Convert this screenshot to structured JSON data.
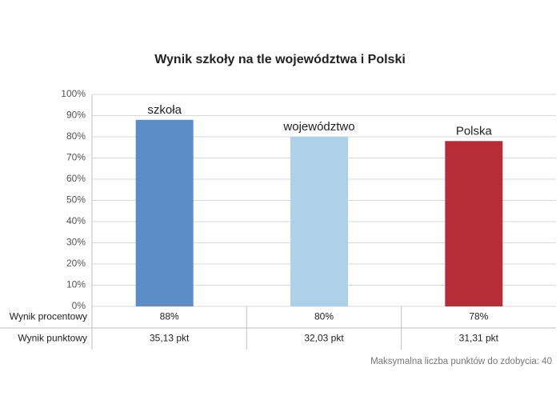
{
  "chart_data": {
    "type": "bar",
    "title": "Wynik szkoły na tle województwa i Polski",
    "categories": [
      "szkoła",
      "województwo",
      "Polska"
    ],
    "values": [
      88,
      80,
      78
    ],
    "value_labels": [
      "88%",
      "80%",
      "78%"
    ],
    "colors": [
      "#5b8dc8",
      "#acd1e8",
      "#b72c36"
    ],
    "ylim": [
      0,
      100
    ],
    "yticks": [
      {
        "value": 0,
        "label": "0%"
      },
      {
        "value": 10,
        "label": "10%"
      },
      {
        "value": 20,
        "label": "20%"
      },
      {
        "value": 30,
        "label": "30%"
      },
      {
        "value": 40,
        "label": "40%"
      },
      {
        "value": 50,
        "label": "50%"
      },
      {
        "value": 60,
        "label": "60%"
      },
      {
        "value": 70,
        "label": "70%"
      },
      {
        "value": 80,
        "label": "80%"
      },
      {
        "value": 90,
        "label": "90%"
      },
      {
        "value": 100,
        "label": "100%"
      }
    ],
    "grid": true,
    "row_labels": [
      "Wynik procentowy",
      "Wynik punktowy"
    ],
    "points": [
      "35,13 pkt",
      "32,03 pkt",
      "31,31 pkt"
    ],
    "note": "Maksymalna liczba punktów do zdobycia: 40"
  }
}
